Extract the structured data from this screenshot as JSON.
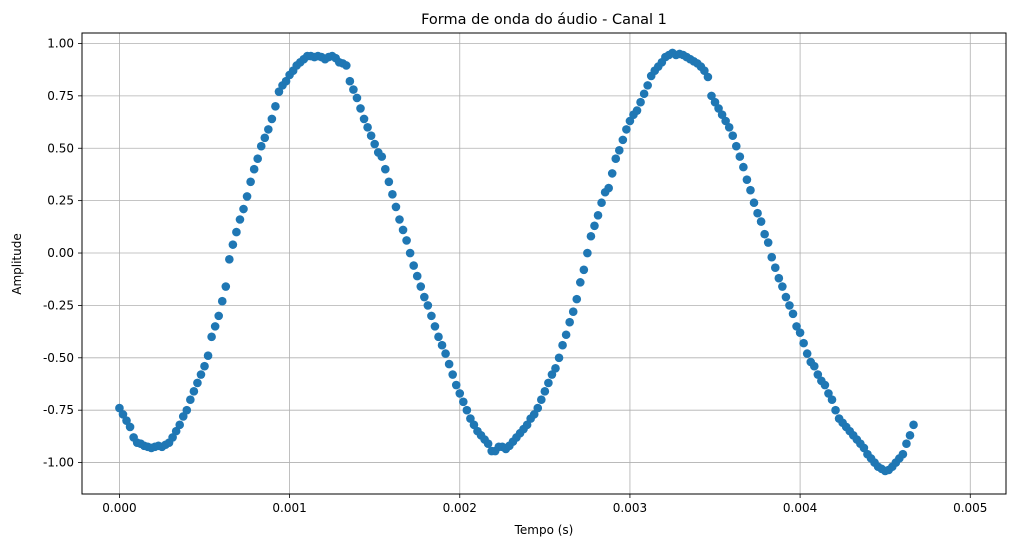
{
  "chart_data": {
    "type": "scatter",
    "title": "Forma de onda do áudio - Canal 1",
    "xlabel": "Tempo (s)",
    "ylabel": "Amplitude",
    "xlim": [
      -0.00022,
      0.00521
    ],
    "ylim": [
      -1.15,
      1.05
    ],
    "xticks": [
      "0.000",
      "0.001",
      "0.002",
      "0.003",
      "0.004",
      "0.005"
    ],
    "yticks": [
      "-1.00",
      "-0.75",
      "-0.50",
      "-0.25",
      "0.00",
      "0.25",
      "0.50",
      "0.75",
      "1.00"
    ],
    "grid": true,
    "marker_color": "#1f77b4",
    "x_step": 2.08333e-05,
    "series": [
      {
        "values": [
          -0.74,
          -0.77,
          -0.8,
          -0.83,
          -0.88,
          -0.905,
          -0.91,
          -0.92,
          -0.925,
          -0.93,
          -0.925,
          -0.92,
          -0.925,
          -0.915,
          -0.905,
          -0.88,
          -0.85,
          -0.82,
          -0.78,
          -0.75,
          -0.7,
          -0.66,
          -0.62,
          -0.58,
          -0.54,
          -0.49,
          -0.4,
          -0.35,
          -0.3,
          -0.23,
          -0.16,
          -0.03,
          0.04,
          0.1,
          0.16,
          0.21,
          0.27,
          0.34,
          0.4,
          0.45,
          0.51,
          0.55,
          0.59,
          0.64,
          0.7,
          0.77,
          0.8,
          0.82,
          0.85,
          0.87,
          0.895,
          0.91,
          0.925,
          0.94,
          0.94,
          0.935,
          0.94,
          0.935,
          0.925,
          0.935,
          0.94,
          0.93,
          0.91,
          0.905,
          0.895,
          0.82,
          0.78,
          0.74,
          0.69,
          0.64,
          0.6,
          0.56,
          0.52,
          0.48,
          0.46,
          0.4,
          0.34,
          0.28,
          0.22,
          0.16,
          0.11,
          0.06,
          0.0,
          -0.06,
          -0.11,
          -0.16,
          -0.21,
          -0.25,
          -0.3,
          -0.35,
          -0.4,
          -0.44,
          -0.48,
          -0.53,
          -0.58,
          -0.63,
          -0.67,
          -0.71,
          -0.75,
          -0.79,
          -0.82,
          -0.85,
          -0.87,
          -0.89,
          -0.91,
          -0.945,
          -0.945,
          -0.925,
          -0.925,
          -0.935,
          -0.92,
          -0.9,
          -0.88,
          -0.86,
          -0.84,
          -0.82,
          -0.79,
          -0.77,
          -0.74,
          -0.7,
          -0.66,
          -0.62,
          -0.58,
          -0.55,
          -0.5,
          -0.44,
          -0.39,
          -0.33,
          -0.28,
          -0.22,
          -0.14,
          -0.08,
          0.0,
          0.08,
          0.13,
          0.18,
          0.24,
          0.29,
          0.31,
          0.38,
          0.45,
          0.49,
          0.54,
          0.59,
          0.63,
          0.66,
          0.68,
          0.72,
          0.76,
          0.8,
          0.845,
          0.87,
          0.89,
          0.91,
          0.935,
          0.945,
          0.955,
          0.945,
          0.95,
          0.945,
          0.935,
          0.925,
          0.915,
          0.905,
          0.89,
          0.87,
          0.84,
          0.75,
          0.72,
          0.69,
          0.66,
          0.63,
          0.6,
          0.56,
          0.51,
          0.46,
          0.41,
          0.35,
          0.3,
          0.24,
          0.19,
          0.15,
          0.09,
          0.05,
          -0.02,
          -0.07,
          -0.12,
          -0.16,
          -0.21,
          -0.25,
          -0.29,
          -0.35,
          -0.38,
          -0.43,
          -0.48,
          -0.52,
          -0.54,
          -0.58,
          -0.61,
          -0.63,
          -0.67,
          -0.7,
          -0.75,
          -0.79,
          -0.81,
          -0.83,
          -0.85,
          -0.87,
          -0.89,
          -0.91,
          -0.93,
          -0.96,
          -0.98,
          -1.0,
          -1.02,
          -1.03,
          -1.04,
          -1.035,
          -1.02,
          -1.0,
          -0.98,
          -0.96,
          -0.91,
          -0.87,
          -0.82
        ]
      }
    ]
  }
}
